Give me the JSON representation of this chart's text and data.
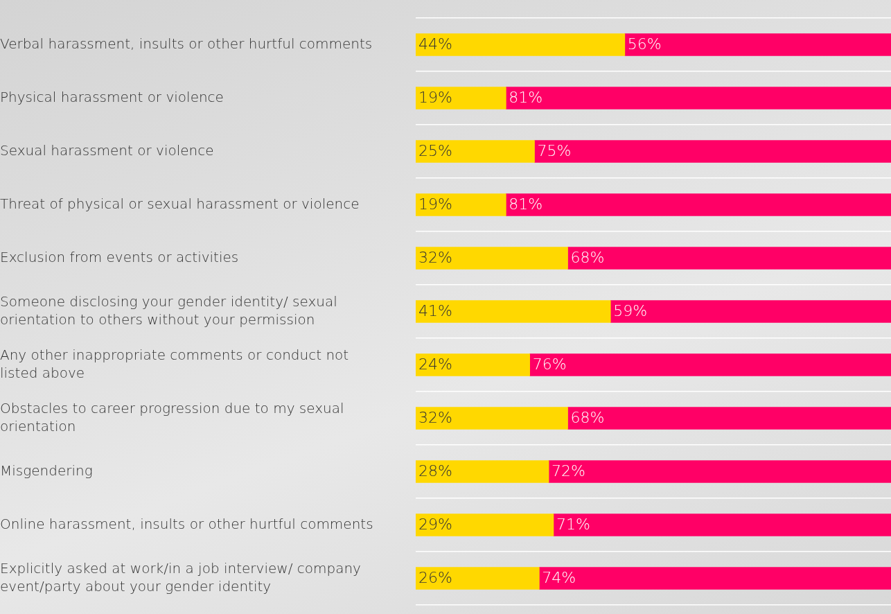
{
  "chart_data": {
    "type": "bar",
    "orientation": "horizontal",
    "stacked": true,
    "legend": false,
    "grid": "y",
    "tick_labels": "y",
    "categories": [
      "Verbal harassment, insults or other hurtful comments",
      "Physical harassment or violence",
      "Sexual harassment or violence",
      "Threat of physical or sexual harassment or violence",
      "Exclusion from events or activities",
      "Someone disclosing your gender identity/ sexual orientation to others without your permission",
      "Any other inappropriate comments or conduct not listed above",
      "Obstacles to career progression due to my sexual orientation",
      "Misgendering",
      "Online harassment, insults or other hurtful comments",
      "Explicitly asked at work/in a job interview/ company event/party about your gender identity"
    ],
    "series": [
      {
        "color": "#ffd800",
        "values": [
          44,
          19,
          25,
          19,
          32,
          41,
          24,
          32,
          28,
          29,
          26
        ],
        "value_labels": [
          "44%",
          "19%",
          "25%",
          "19%",
          "32%",
          "41%",
          "24%",
          "32%",
          "28%",
          "29%",
          "26%"
        ]
      },
      {
        "color": "#ff0066",
        "values": [
          56,
          81,
          75,
          81,
          68,
          59,
          76,
          68,
          72,
          71,
          74
        ],
        "value_labels": [
          "56%",
          "81%",
          "75%",
          "81%",
          "68%",
          "59%",
          "76%",
          "68%",
          "72%",
          "71%",
          "74%"
        ]
      }
    ]
  }
}
